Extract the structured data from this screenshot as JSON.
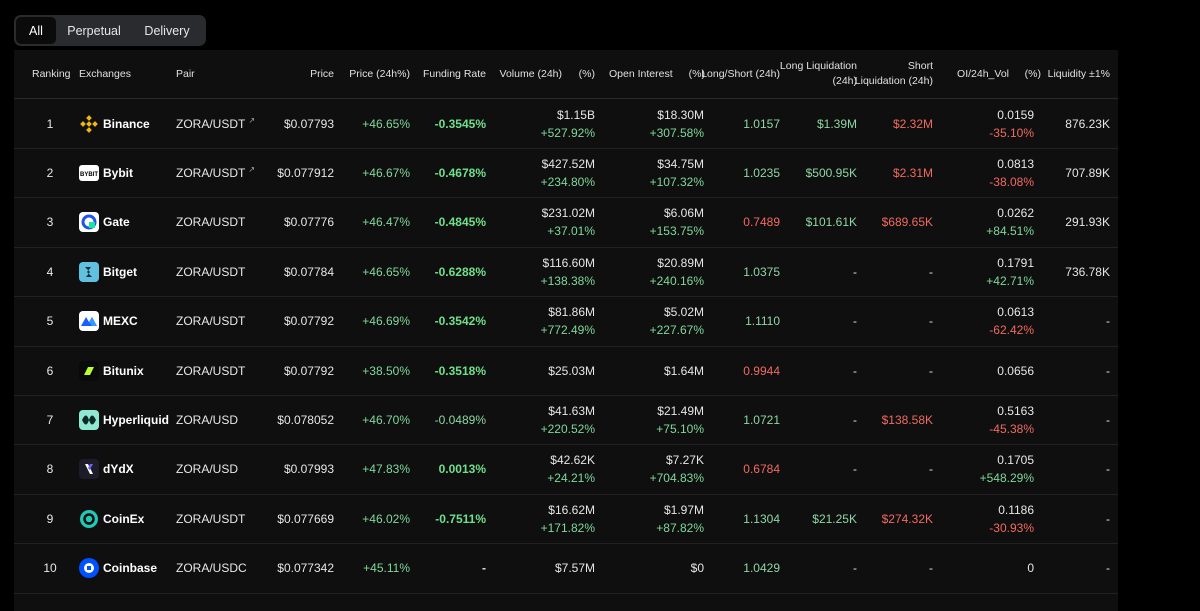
{
  "tabs": [
    "All",
    "Perpetual",
    "Delivery"
  ],
  "headers": {
    "ranking": "Ranking",
    "exchanges": "Exchanges",
    "pair": "Pair",
    "price": "Price",
    "price24h": "Price (24h%)",
    "funding": "Funding Rate",
    "volume": "Volume (24h)",
    "volume_pct": "(%)",
    "oi": "Open Interest",
    "oi_pct": "(%)",
    "longshort": "Long/Short (24h)",
    "longliq_1": "Long Liquidation",
    "longliq_2": "(24h)",
    "shortliq_1": "Short",
    "shortliq_2": "Liquidation (24h)",
    "oivol": "OI/24h_Vol",
    "oivol_pct": "(%)",
    "liquidity": "Liquidity ±1%"
  },
  "rows": [
    {
      "rank": "1",
      "exchange": "Binance",
      "logo": "binance-logo",
      "pair": "ZORA/USDT",
      "ext": "↗",
      "price": "$0.07793",
      "chg": "+46.65%",
      "funding": "-0.3545%",
      "vol": "$1.15B",
      "volpct": "+527.92%",
      "oi": "$18.30M",
      "oipct": "+307.58%",
      "ls": "1.0157",
      "longliq": "$1.39M",
      "shortliq": "$2.32M",
      "oivol": "0.0159",
      "oivolpct": "-35.10%",
      "liq": "876.23K"
    },
    {
      "rank": "2",
      "exchange": "Bybit",
      "logo": "bybit-logo",
      "pair": "ZORA/USDT",
      "ext": "↗",
      "price": "$0.077912",
      "chg": "+46.67%",
      "funding": "-0.4678%",
      "vol": "$427.52M",
      "volpct": "+234.80%",
      "oi": "$34.75M",
      "oipct": "+107.32%",
      "ls": "1.0235",
      "longliq": "$500.95K",
      "shortliq": "$2.31M",
      "oivol": "0.0813",
      "oivolpct": "-38.08%",
      "liq": "707.89K"
    },
    {
      "rank": "3",
      "exchange": "Gate",
      "logo": "gate-logo",
      "pair": "ZORA/USDT",
      "ext": "",
      "price": "$0.07776",
      "chg": "+46.47%",
      "funding": "-0.4845%",
      "vol": "$231.02M",
      "volpct": "+37.01%",
      "oi": "$6.06M",
      "oipct": "+153.75%",
      "ls": "0.7489",
      "longliq": "$101.61K",
      "shortliq": "$689.65K",
      "oivol": "0.0262",
      "oivolpct": "+84.51%",
      "liq": "291.93K"
    },
    {
      "rank": "4",
      "exchange": "Bitget",
      "logo": "bitget-logo",
      "pair": "ZORA/USDT",
      "ext": "",
      "price": "$0.07784",
      "chg": "+46.65%",
      "funding": "-0.6288%",
      "vol": "$116.60M",
      "volpct": "+138.38%",
      "oi": "$20.89M",
      "oipct": "+240.16%",
      "ls": "1.0375",
      "longliq": "-",
      "shortliq": "-",
      "oivol": "0.1791",
      "oivolpct": "+42.71%",
      "liq": "736.78K"
    },
    {
      "rank": "5",
      "exchange": "MEXC",
      "logo": "mexc-logo",
      "pair": "ZORA/USDT",
      "ext": "",
      "price": "$0.07792",
      "chg": "+46.69%",
      "funding": "-0.3542%",
      "vol": "$81.86M",
      "volpct": "+772.49%",
      "oi": "$5.02M",
      "oipct": "+227.67%",
      "ls": "1.1110",
      "longliq": "-",
      "shortliq": "-",
      "oivol": "0.0613",
      "oivolpct": "-62.42%",
      "liq": "-"
    },
    {
      "rank": "6",
      "exchange": "Bitunix",
      "logo": "bitunix-logo",
      "pair": "ZORA/USDT",
      "ext": "",
      "price": "$0.07792",
      "chg": "+38.50%",
      "funding": "-0.3518%",
      "vol": "$25.03M",
      "volpct": "",
      "oi": "$1.64M",
      "oipct": "",
      "ls": "0.9944",
      "longliq": "-",
      "shortliq": "-",
      "oivol": "0.0656",
      "oivolpct": "",
      "liq": "-"
    },
    {
      "rank": "7",
      "exchange": "Hyperliquid",
      "logo": "hyperliquid-logo",
      "pair": "ZORA/USD",
      "ext": "",
      "price": "$0.078052",
      "chg": "+46.70%",
      "funding": "-0.0489%",
      "vol": "$41.63M",
      "volpct": "+220.52%",
      "oi": "$21.49M",
      "oipct": "+75.10%",
      "ls": "1.0721",
      "longliq": "-",
      "shortliq": "$138.58K",
      "oivol": "0.5163",
      "oivolpct": "-45.38%",
      "liq": "-"
    },
    {
      "rank": "8",
      "exchange": "dYdX",
      "logo": "dydx-logo",
      "pair": "ZORA/USD",
      "ext": "",
      "price": "$0.07993",
      "chg": "+47.83%",
      "funding": "0.0013%",
      "vol": "$42.62K",
      "volpct": "+24.21%",
      "oi": "$7.27K",
      "oipct": "+704.83%",
      "ls": "0.6784",
      "longliq": "-",
      "shortliq": "-",
      "oivol": "0.1705",
      "oivolpct": "+548.29%",
      "liq": "-"
    },
    {
      "rank": "9",
      "exchange": "CoinEx",
      "logo": "coinex-logo",
      "pair": "ZORA/USDT",
      "ext": "",
      "price": "$0.077669",
      "chg": "+46.02%",
      "funding": "-0.7511%",
      "vol": "$16.62M",
      "volpct": "+171.82%",
      "oi": "$1.97M",
      "oipct": "+87.82%",
      "ls": "1.1304",
      "longliq": "$21.25K",
      "shortliq": "$274.32K",
      "oivol": "0.1186",
      "oivolpct": "-30.93%",
      "liq": "-"
    },
    {
      "rank": "10",
      "exchange": "Coinbase",
      "logo": "coinbase-logo",
      "pair": "ZORA/USDC",
      "ext": "",
      "price": "$0.077342",
      "chg": "+45.11%",
      "funding": "-",
      "vol": "$7.57M",
      "volpct": "",
      "oi": "$0",
      "oipct": "",
      "ls": "1.0429",
      "longliq": "-",
      "shortliq": "-",
      "oivol": "0",
      "oivolpct": "",
      "liq": "-"
    }
  ],
  "colors": {
    "positive": "#7fd89a",
    "negative": "#f26a5f",
    "background": "#0f0f10"
  }
}
